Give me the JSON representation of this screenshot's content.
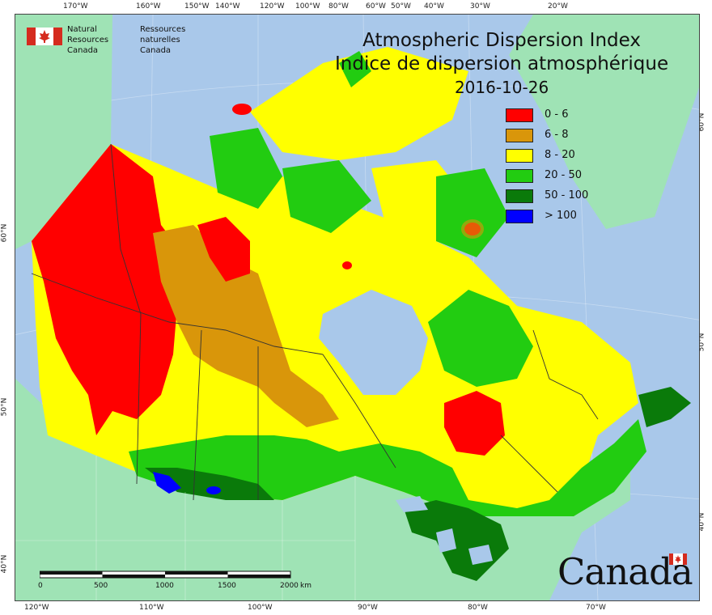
{
  "title": {
    "line1": "Atmospheric Dispersion Index",
    "line2": "Indice de dispersion atmosphérique",
    "date": "2016-10-26"
  },
  "agency": {
    "en_line1": "Natural Resources",
    "en_line2": "Canada",
    "fr_line1": "Ressources naturelles",
    "fr_line2": "Canada"
  },
  "wordmark": "Canada",
  "legend": [
    {
      "label": "0 - 6",
      "color": "#ff0000"
    },
    {
      "label": "6 - 8",
      "color": "#d9960a"
    },
    {
      "label": "8 - 20",
      "color": "#ffff00"
    },
    {
      "label": "20 - 50",
      "color": "#22cc11"
    },
    {
      "label": "50 - 100",
      "color": "#0a7a0a"
    },
    {
      "label": "> 100",
      "color": "#0000ff"
    }
  ],
  "top_longitudes": [
    "170°W",
    "160°W",
    "150°W",
    "140°W",
    "120°W",
    "100°W",
    "80°W",
    "60°W",
    "50°W",
    "40°W",
    "30°W",
    "20°W"
  ],
  "bottom_longitudes": [
    "120°W",
    "110°W",
    "100°W",
    "90°W",
    "80°W",
    "70°W"
  ],
  "left_latitudes": [
    "60°N",
    "50°N",
    "40°N"
  ],
  "right_latitudes": [
    "60°N",
    "50°N",
    "40°N"
  ],
  "scalebar": {
    "ticks": [
      "0",
      "500",
      "1000",
      "1500",
      "2000"
    ],
    "unit": "km"
  },
  "colors": {
    "ocean": "#a9c8ea",
    "land_outside": "#9fe3b5",
    "boundary": "#333333"
  }
}
